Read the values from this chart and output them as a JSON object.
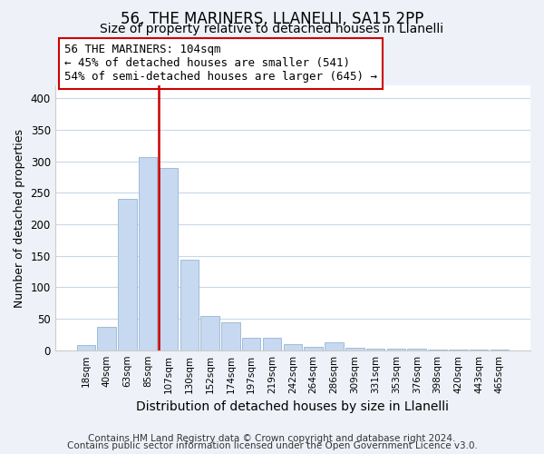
{
  "title": "56, THE MARINERS, LLANELLI, SA15 2PP",
  "subtitle": "Size of property relative to detached houses in Llanelli",
  "xlabel": "Distribution of detached houses by size in Llanelli",
  "ylabel": "Number of detached properties",
  "bar_labels": [
    "18sqm",
    "40sqm",
    "63sqm",
    "85sqm",
    "107sqm",
    "130sqm",
    "152sqm",
    "174sqm",
    "197sqm",
    "219sqm",
    "242sqm",
    "264sqm",
    "286sqm",
    "309sqm",
    "331sqm",
    "353sqm",
    "376sqm",
    "398sqm",
    "420sqm",
    "443sqm",
    "465sqm"
  ],
  "bar_values": [
    8,
    37,
    240,
    307,
    290,
    143,
    55,
    44,
    20,
    20,
    9,
    5,
    13,
    4,
    2,
    2,
    2,
    1,
    1,
    1,
    1
  ],
  "bar_color": "#c6d9f0",
  "bar_edge_color": "#a0bcd8",
  "vline_x_index": 3,
  "vline_color": "#cc0000",
  "annotation_text": "56 THE MARINERS: 104sqm\n← 45% of detached houses are smaller (541)\n54% of semi-detached houses are larger (645) →",
  "annotation_box_edge_color": "#cc0000",
  "annotation_fontsize": 9,
  "ylim": [
    0,
    420
  ],
  "yticks": [
    0,
    50,
    100,
    150,
    200,
    250,
    300,
    350,
    400
  ],
  "footer1": "Contains HM Land Registry data © Crown copyright and database right 2024.",
  "footer2": "Contains public sector information licensed under the Open Government Licence v3.0.",
  "bg_color": "#eef2f8",
  "plot_bg_color": "#ffffff",
  "title_fontsize": 12,
  "subtitle_fontsize": 10,
  "xlabel_fontsize": 10,
  "ylabel_fontsize": 9,
  "footer_fontsize": 7.5
}
